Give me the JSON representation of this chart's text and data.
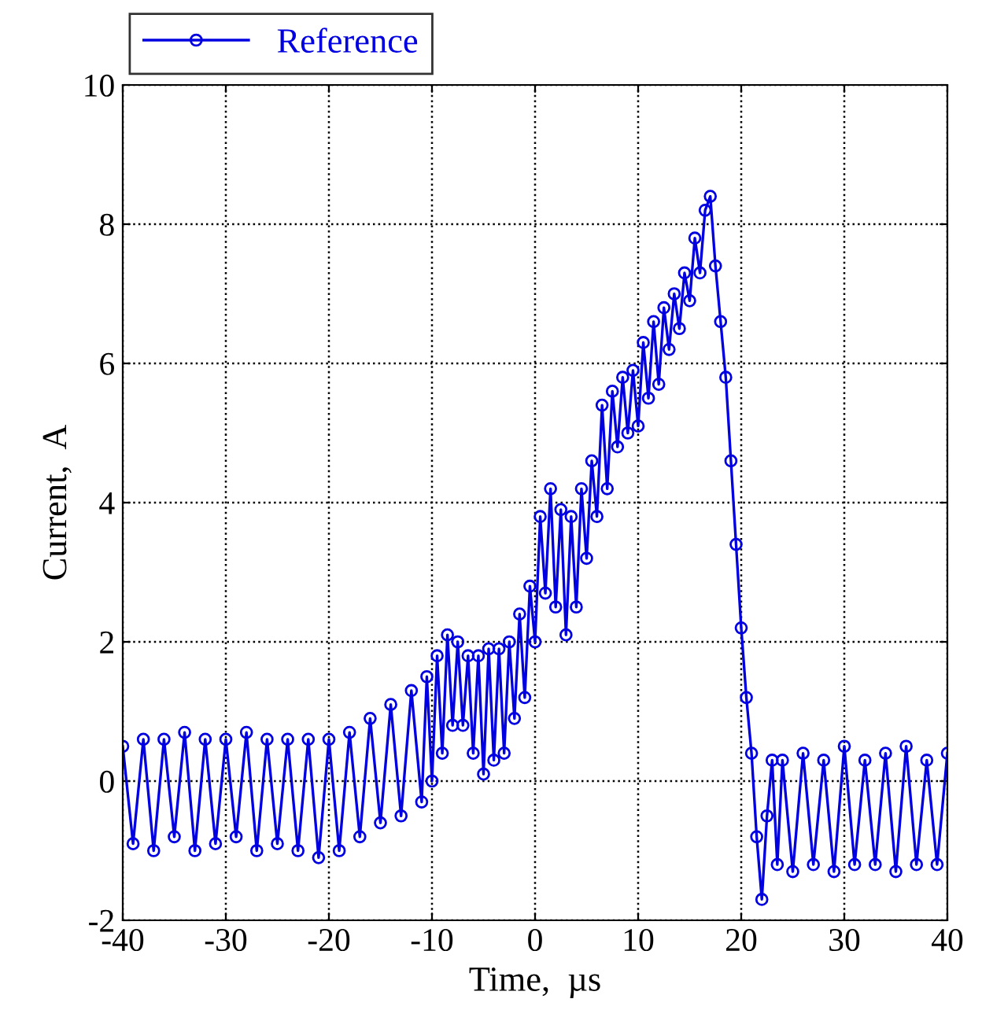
{
  "chart_data": {
    "type": "line",
    "xlabel": "Time,  µs",
    "ylabel": "Current,  A",
    "xlim": [
      -40,
      40
    ],
    "ylim": [
      -2,
      10
    ],
    "xticks": [
      -40,
      -30,
      -20,
      -10,
      0,
      10,
      20,
      30,
      40
    ],
    "yticks": [
      -2,
      0,
      2,
      4,
      6,
      8,
      10
    ],
    "grid": true,
    "legend": "top left",
    "marker": "circle",
    "line_style": "solid",
    "series": [
      {
        "name": "Reference",
        "color": "#0000e0",
        "x": [
          -40,
          -39,
          -38,
          -37,
          -36,
          -35,
          -34,
          -33,
          -32,
          -31,
          -30,
          -29,
          -28,
          -27,
          -26,
          -25,
          -24,
          -23,
          -22,
          -21,
          -20,
          -19,
          -18,
          -17,
          -16,
          -15,
          -14,
          -13,
          -12,
          -11,
          -10.5,
          -10,
          -9.5,
          -9,
          -8.5,
          -8,
          -7.5,
          -7,
          -6.5,
          -6,
          -5.5,
          -5,
          -4.5,
          -4,
          -3.5,
          -3,
          -2.5,
          -2,
          -1.5,
          -1,
          -0.5,
          0,
          0.5,
          1,
          1.5,
          2,
          2.5,
          3,
          3.5,
          4,
          4.5,
          5,
          5.5,
          6,
          6.5,
          7,
          7.5,
          8,
          8.5,
          9,
          9.5,
          10,
          10.5,
          11,
          11.5,
          12,
          12.5,
          13,
          13.5,
          14,
          14.5,
          15,
          15.5,
          16,
          16.5,
          17,
          17.5,
          18,
          18.5,
          19,
          19.5,
          20,
          20.5,
          21,
          21.5,
          22,
          22.5,
          23,
          23.5,
          24,
          25,
          26,
          27,
          28,
          29,
          30,
          31,
          32,
          33,
          34,
          35,
          36,
          37,
          38,
          39,
          40
        ],
        "values": [
          0.5,
          -0.9,
          0.6,
          -1.0,
          0.6,
          -0.8,
          0.7,
          -1.0,
          0.6,
          -0.9,
          0.6,
          -0.8,
          0.7,
          -1.0,
          0.6,
          -0.9,
          0.6,
          -1.0,
          0.6,
          -1.1,
          0.6,
          -1.0,
          0.7,
          -0.8,
          0.9,
          -0.6,
          1.1,
          -0.5,
          1.3,
          -0.3,
          1.5,
          0.0,
          1.8,
          0.4,
          2.1,
          0.8,
          2.0,
          0.8,
          1.8,
          0.4,
          1.8,
          0.1,
          1.9,
          0.3,
          1.9,
          0.4,
          2.0,
          0.9,
          2.4,
          1.2,
          2.8,
          2.0,
          3.8,
          2.7,
          4.2,
          2.5,
          3.9,
          2.1,
          3.8,
          2.5,
          4.2,
          3.2,
          4.6,
          3.8,
          5.4,
          4.2,
          5.6,
          4.8,
          5.8,
          5.0,
          5.9,
          5.1,
          6.3,
          5.5,
          6.6,
          5.7,
          6.8,
          6.2,
          7.0,
          6.5,
          7.3,
          6.9,
          7.8,
          7.3,
          8.2,
          8.4,
          7.4,
          6.6,
          5.8,
          4.6,
          3.4,
          2.2,
          1.2,
          0.4,
          -0.8,
          -1.7,
          -0.5,
          0.3,
          -1.2,
          0.3,
          -1.3,
          0.4,
          -1.2,
          0.3,
          -1.3,
          0.5,
          -1.2,
          0.3,
          -1.2,
          0.4,
          -1.3,
          0.5,
          -1.2,
          0.3,
          -1.2,
          0.4
        ]
      }
    ]
  }
}
